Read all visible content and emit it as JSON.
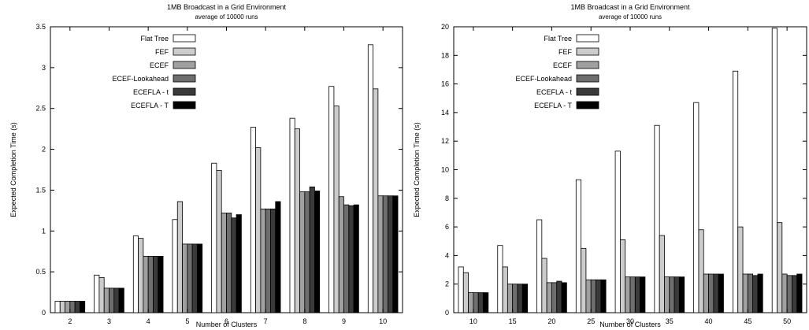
{
  "chart_data": [
    {
      "type": "bar",
      "title": "1MB Broadcast in a Grid Environment",
      "subtitle": "average of 10000 runs",
      "xlabel": "Number of Clusters",
      "ylabel": "Expected Completion Time (s)",
      "ylim": [
        0,
        3.5
      ],
      "yticks": [
        "0",
        "0.5",
        "1",
        "1.5",
        "2",
        "2.5",
        "3",
        "3.5"
      ],
      "grid": false,
      "legend_position": "top-left",
      "categories": [
        "2",
        "3",
        "4",
        "5",
        "6",
        "7",
        "8",
        "9",
        "10"
      ],
      "series": [
        {
          "name": "Flat Tree",
          "color": "#ffffff",
          "values": [
            0.14,
            0.46,
            0.94,
            1.14,
            1.83,
            2.27,
            2.38,
            2.77,
            3.28
          ]
        },
        {
          "name": "FEF",
          "color": "#cccccc",
          "values": [
            0.14,
            0.43,
            0.91,
            1.36,
            1.74,
            2.02,
            2.25,
            2.53,
            2.74
          ]
        },
        {
          "name": "ECEF",
          "color": "#a0a0a0",
          "values": [
            0.14,
            0.3,
            0.69,
            0.84,
            1.22,
            1.27,
            1.48,
            1.42,
            1.43
          ]
        },
        {
          "name": "ECEF-Lookahead",
          "color": "#6e6e6e",
          "values": [
            0.14,
            0.3,
            0.69,
            0.84,
            1.22,
            1.27,
            1.48,
            1.32,
            1.43
          ]
        },
        {
          "name": "ECEFLA - t",
          "color": "#3a3a3a",
          "values": [
            0.14,
            0.3,
            0.69,
            0.84,
            1.16,
            1.27,
            1.54,
            1.31,
            1.43
          ]
        },
        {
          "name": "ECEFLA - T",
          "color": "#000000",
          "values": [
            0.14,
            0.3,
            0.69,
            0.84,
            1.2,
            1.36,
            1.49,
            1.32,
            1.43
          ]
        }
      ]
    },
    {
      "type": "bar",
      "title": "1MB Broadcast in a Grid Environment",
      "subtitle": "average of 10000 runs",
      "xlabel": "Number of Clusters",
      "ylabel": "Expected Completion Time (s)",
      "ylim": [
        0,
        20
      ],
      "yticks": [
        "0",
        "2",
        "4",
        "6",
        "8",
        "10",
        "12",
        "14",
        "16",
        "18",
        "20"
      ],
      "grid": false,
      "legend_position": "top-left",
      "categories": [
        "10",
        "15",
        "20",
        "25",
        "30",
        "35",
        "40",
        "45",
        "50"
      ],
      "series": [
        {
          "name": "Flat Tree",
          "color": "#ffffff",
          "values": [
            3.2,
            4.7,
            6.5,
            9.3,
            11.3,
            13.1,
            14.7,
            16.9,
            19.9
          ]
        },
        {
          "name": "FEF",
          "color": "#cccccc",
          "values": [
            2.8,
            3.2,
            3.8,
            4.5,
            5.1,
            5.4,
            5.8,
            6.0,
            6.3
          ]
        },
        {
          "name": "ECEF",
          "color": "#a0a0a0",
          "values": [
            1.4,
            2.0,
            2.1,
            2.3,
            2.5,
            2.5,
            2.7,
            2.7,
            2.7
          ]
        },
        {
          "name": "ECEF-Lookahead",
          "color": "#6e6e6e",
          "values": [
            1.4,
            2.0,
            2.1,
            2.3,
            2.5,
            2.5,
            2.7,
            2.7,
            2.6
          ]
        },
        {
          "name": "ECEFLA - t",
          "color": "#3a3a3a",
          "values": [
            1.4,
            2.0,
            2.2,
            2.3,
            2.5,
            2.5,
            2.7,
            2.6,
            2.6
          ]
        },
        {
          "name": "ECEFLA - T",
          "color": "#000000",
          "values": [
            1.4,
            2.0,
            2.1,
            2.3,
            2.5,
            2.5,
            2.7,
            2.7,
            2.7
          ]
        }
      ]
    }
  ]
}
